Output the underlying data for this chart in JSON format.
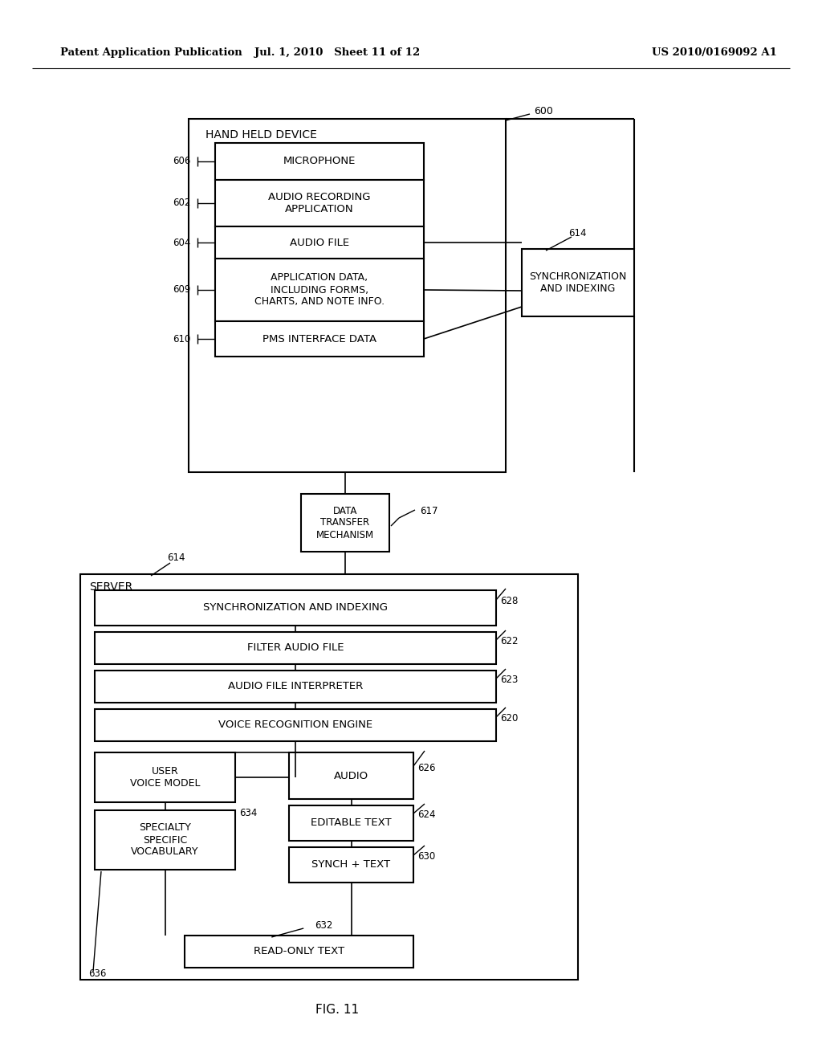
{
  "bg_color": "#ffffff",
  "header_left": "Patent Application Publication",
  "header_mid": "Jul. 1, 2010   Sheet 11 of 12",
  "header_right": "US 2010/0169092 A1",
  "fig_label": "FIG. 11"
}
